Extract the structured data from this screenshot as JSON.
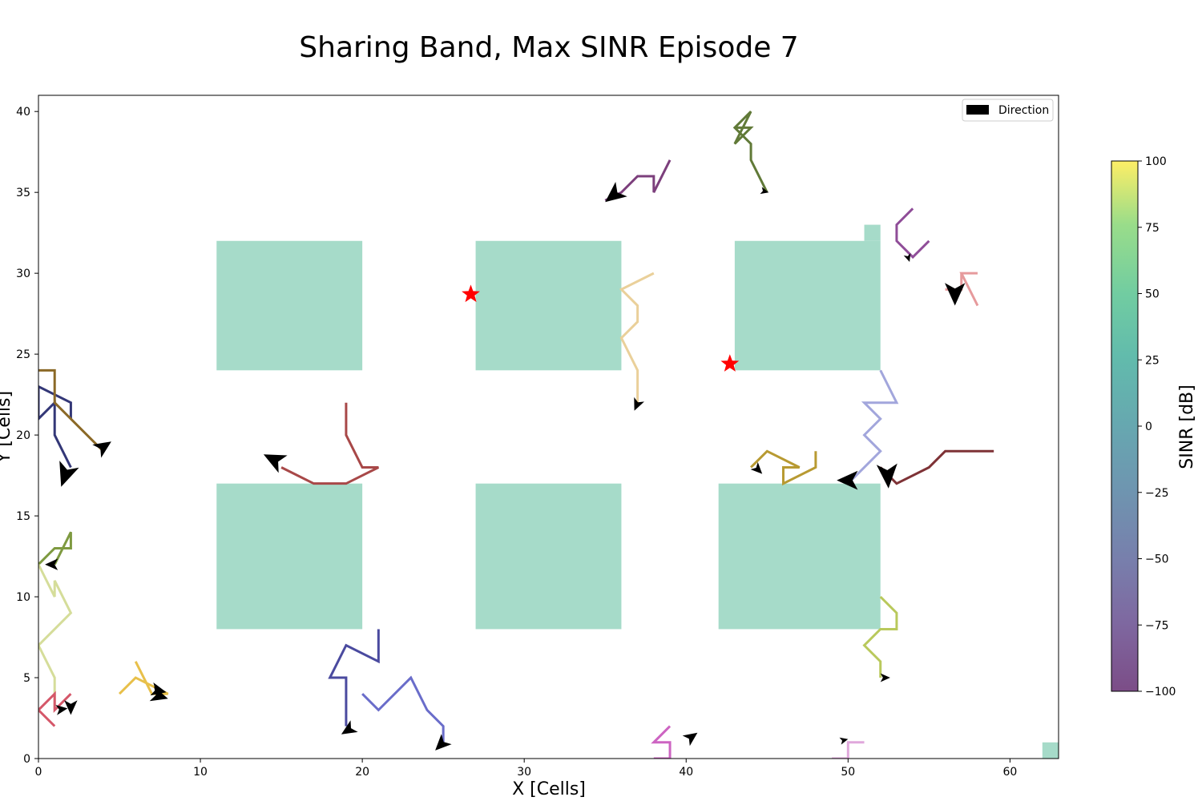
{
  "chart_data": {
    "type": "line",
    "title": "Sharing Band, Max SINR Episode 7",
    "xlabel": "X [Cells]",
    "ylabel": "Y [Cells]",
    "xlim": [
      0,
      63
    ],
    "ylim": [
      0,
      41
    ],
    "xticks": [
      "0",
      "10",
      "20",
      "30",
      "40",
      "50",
      "60"
    ],
    "yticks": [
      "0",
      "5",
      "10",
      "15",
      "20",
      "25",
      "30",
      "35",
      "40"
    ],
    "grid": false,
    "legend": {
      "position": "top-right",
      "entries": [
        "Direction"
      ]
    },
    "colorbar": {
      "label": "SINR [dB]",
      "range": [
        -100,
        100
      ],
      "ticks": [
        "100",
        "75",
        "50",
        "25",
        "0",
        "−25",
        "−50",
        "−75",
        "−100"
      ],
      "colormap": "viridis",
      "alpha": 0.7
    },
    "colors": {
      "building": "#a6dbc9",
      "base_station": "#ff0000",
      "arrow": "#000000"
    },
    "buildings": [
      {
        "x": [
          11,
          20
        ],
        "y": [
          24,
          32
        ]
      },
      {
        "x": [
          27,
          36
        ],
        "y": [
          24,
          32
        ]
      },
      {
        "x": [
          43,
          52
        ],
        "y": [
          24,
          32
        ]
      },
      {
        "x": [
          51,
          52
        ],
        "y": [
          32,
          33
        ]
      },
      {
        "x": [
          11,
          20
        ],
        "y": [
          8,
          17
        ]
      },
      {
        "x": [
          27,
          36
        ],
        "y": [
          8,
          17
        ]
      },
      {
        "x": [
          42,
          52
        ],
        "y": [
          8,
          17
        ]
      },
      {
        "x": [
          62,
          63
        ],
        "y": [
          0,
          1
        ]
      }
    ],
    "base_stations": [
      {
        "x": 26.7,
        "y": 28.7
      },
      {
        "x": 42.7,
        "y": 24.4
      }
    ],
    "series": [
      {
        "color": "#7c3f7c",
        "points": [
          [
            39,
            37
          ],
          [
            38,
            35
          ],
          [
            38,
            36
          ],
          [
            37,
            36
          ],
          [
            36,
            35
          ],
          [
            35,
            34.5
          ]
        ]
      },
      {
        "color": "#617a38",
        "points": [
          [
            45,
            35
          ],
          [
            44,
            37
          ],
          [
            44,
            38
          ],
          [
            43,
            39
          ],
          [
            44,
            40
          ],
          [
            43,
            38
          ],
          [
            44,
            39
          ],
          [
            43,
            39
          ]
        ]
      },
      {
        "color": "#8f4d98",
        "points": [
          [
            54,
            34
          ],
          [
            53,
            33
          ],
          [
            53,
            32
          ],
          [
            54,
            31
          ],
          [
            55,
            32
          ]
        ]
      },
      {
        "color": "#e69a9c",
        "points": [
          [
            56,
            29
          ],
          [
            57,
            29
          ],
          [
            57,
            30
          ],
          [
            58,
            30
          ],
          [
            57,
            30
          ],
          [
            58,
            28
          ]
        ]
      },
      {
        "color": "#ead09a",
        "points": [
          [
            38,
            30
          ],
          [
            36,
            29
          ],
          [
            37,
            28
          ],
          [
            37,
            27
          ],
          [
            36,
            26
          ],
          [
            37,
            24
          ],
          [
            37,
            22
          ]
        ]
      },
      {
        "color": "#333777",
        "points": [
          [
            2,
            18
          ],
          [
            1,
            20
          ],
          [
            1,
            22
          ],
          [
            0,
            21
          ],
          [
            0,
            23
          ],
          [
            2,
            22
          ],
          [
            2,
            21
          ]
        ]
      },
      {
        "color": "#8b6927",
        "points": [
          [
            0,
            24
          ],
          [
            1,
            24
          ],
          [
            1,
            22
          ],
          [
            2,
            21
          ],
          [
            4,
            19
          ]
        ]
      },
      {
        "color": "#a84848",
        "points": [
          [
            19,
            22
          ],
          [
            19,
            20
          ],
          [
            20,
            18
          ],
          [
            21,
            18
          ],
          [
            19,
            17
          ],
          [
            17,
            17
          ],
          [
            15,
            18
          ]
        ]
      },
      {
        "color": "#a2a6dc",
        "points": [
          [
            52,
            24
          ],
          [
            53,
            22
          ],
          [
            51,
            22
          ],
          [
            52,
            21
          ],
          [
            51,
            20
          ],
          [
            52,
            19
          ],
          [
            50,
            17
          ]
        ]
      },
      {
        "color": "#b89a32",
        "points": [
          [
            48,
            19
          ],
          [
            48,
            18
          ],
          [
            46,
            17
          ],
          [
            46,
            18
          ],
          [
            47,
            18
          ],
          [
            45,
            19
          ],
          [
            44,
            18
          ]
        ]
      },
      {
        "color": "#7e3236",
        "points": [
          [
            59,
            19
          ],
          [
            56,
            19
          ],
          [
            55,
            18
          ],
          [
            53,
            17
          ],
          [
            52,
            18
          ]
        ]
      },
      {
        "color": "#7e9a40",
        "points": [
          [
            1,
            12
          ],
          [
            2,
            14
          ],
          [
            2,
            13
          ],
          [
            1,
            13
          ],
          [
            0,
            12
          ]
        ]
      },
      {
        "color": "#d5dd9a",
        "points": [
          [
            0,
            12
          ],
          [
            1,
            10
          ],
          [
            1,
            11
          ],
          [
            2,
            9
          ],
          [
            0,
            7
          ],
          [
            1,
            5
          ],
          [
            1,
            3
          ]
        ]
      },
      {
        "color": "#b9c95c",
        "points": [
          [
            52,
            10
          ],
          [
            53,
            9
          ],
          [
            53,
            8
          ],
          [
            52,
            8
          ],
          [
            51,
            7
          ],
          [
            52,
            6
          ],
          [
            52,
            5
          ]
        ]
      },
      {
        "color": "#4a4a9f",
        "points": [
          [
            21,
            8
          ],
          [
            21,
            6
          ],
          [
            19,
            7
          ],
          [
            18,
            5
          ],
          [
            19,
            5
          ],
          [
            19,
            2
          ]
        ]
      },
      {
        "color": "#6a6dca",
        "points": [
          [
            20,
            4
          ],
          [
            21,
            3
          ],
          [
            23,
            5
          ],
          [
            24,
            3
          ],
          [
            25,
            2
          ],
          [
            25,
            1
          ]
        ]
      },
      {
        "color": "#e8c04a",
        "points": [
          [
            6,
            6
          ],
          [
            7,
            4
          ],
          [
            8,
            4
          ],
          [
            6,
            5
          ],
          [
            5,
            4
          ]
        ]
      },
      {
        "color": "#d5586a",
        "points": [
          [
            1,
            2
          ],
          [
            0,
            3
          ],
          [
            1,
            4
          ],
          [
            1,
            3
          ],
          [
            2,
            4
          ]
        ]
      },
      {
        "color": "#cd64c2",
        "points": [
          [
            39,
            2
          ],
          [
            38,
            1
          ],
          [
            39,
            1
          ],
          [
            39,
            0
          ],
          [
            38,
            0
          ]
        ]
      },
      {
        "color": "#e0a8dc",
        "points": [
          [
            51,
            1
          ],
          [
            50,
            1
          ],
          [
            50,
            0
          ],
          [
            49,
            0
          ]
        ]
      }
    ],
    "direction_arrows": [
      {
        "tail": [
          36,
          35.2
        ],
        "head": [
          35,
          34.4
        ]
      },
      {
        "tail": [
          44.7,
          35.1
        ],
        "head": [
          45.1,
          35.0
        ]
      },
      {
        "tail": [
          53.7,
          31.0
        ],
        "head": [
          53.8,
          30.7
        ]
      },
      {
        "tail": [
          56.6,
          29.4
        ],
        "head": [
          56.6,
          28.0
        ]
      },
      {
        "tail": [
          37.1,
          22.2
        ],
        "head": [
          36.8,
          21.5
        ]
      },
      {
        "tail": [
          1.9,
          18.2
        ],
        "head": [
          1.4,
          16.8
        ]
      },
      {
        "tail": [
          3.6,
          19.0
        ],
        "head": [
          4.5,
          19.6
        ]
      },
      {
        "tail": [
          15.1,
          18.2
        ],
        "head": [
          13.9,
          18.8
        ]
      },
      {
        "tail": [
          50.6,
          17.2
        ],
        "head": [
          49.3,
          17.2
        ]
      },
      {
        "tail": [
          44.2,
          18.1
        ],
        "head": [
          44.7,
          17.6
        ]
      },
      {
        "tail": [
          52.4,
          18.2
        ],
        "head": [
          52.5,
          16.7
        ]
      },
      {
        "tail": [
          1.2,
          12.0
        ],
        "head": [
          0.4,
          12.0
        ]
      },
      {
        "tail": [
          52.0,
          5.0
        ],
        "head": [
          52.6,
          5.0
        ]
      },
      {
        "tail": [
          19.5,
          2.0
        ],
        "head": [
          18.7,
          1.5
        ]
      },
      {
        "tail": [
          25.2,
          1.2
        ],
        "head": [
          24.5,
          0.5
        ]
      },
      {
        "tail": [
          7.0,
          4.3
        ],
        "head": [
          7.9,
          4.1
        ]
      },
      {
        "tail": [
          7.0,
          4.0
        ],
        "head": [
          8.0,
          3.7
        ]
      },
      {
        "tail": [
          2.0,
          3.6
        ],
        "head": [
          2.0,
          2.7
        ]
      },
      {
        "tail": [
          1.1,
          3.0
        ],
        "head": [
          1.8,
          3.1
        ]
      },
      {
        "tail": [
          40.0,
          1.1
        ],
        "head": [
          40.7,
          1.6
        ]
      },
      {
        "tail": [
          49.6,
          1.1
        ],
        "head": [
          50.0,
          1.2
        ]
      }
    ]
  }
}
